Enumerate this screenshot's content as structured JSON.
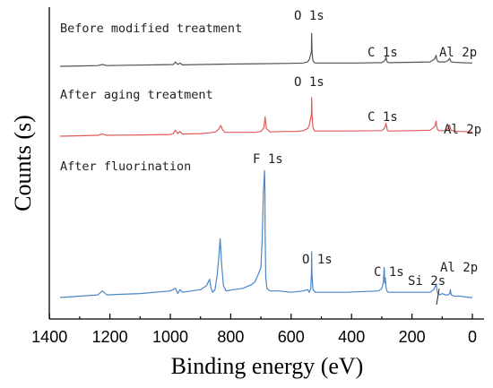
{
  "chart_data": {
    "type": "line",
    "title": "",
    "xlabel": "Binding energy (eV)",
    "ylabel": "Counts (s)",
    "xlim": [
      1400,
      0
    ],
    "x_reversed": true,
    "x_ticks": [
      1400,
      1200,
      1000,
      800,
      600,
      400,
      200,
      0
    ],
    "y_ticks_shown": false,
    "grid": false,
    "legend": "none",
    "series": [
      {
        "name": "Before modified treatment",
        "color": "#555555",
        "x": [
          1365,
          1300,
          1240,
          1225,
          1210,
          1150,
          1050,
          990,
          983,
          975,
          968,
          960,
          900,
          800,
          700,
          600,
          560,
          545,
          540,
          533,
          532,
          531,
          528,
          522,
          510,
          480,
          420,
          380,
          300,
          292,
          288,
          286,
          284,
          282,
          278,
          270,
          200,
          140,
          125,
          120,
          118,
          115,
          110,
          105,
          90,
          80,
          75,
          73,
          70,
          60,
          40,
          10,
          0
        ],
        "y": [
          10,
          11,
          12,
          15,
          12,
          13,
          14,
          15,
          22,
          15,
          19,
          14,
          15,
          16,
          17,
          18,
          19,
          22,
          28,
          50,
          100,
          50,
          25,
          19,
          19,
          19,
          19,
          19,
          20,
          24,
          28,
          36,
          28,
          22,
          20,
          20,
          21,
          22,
          30,
          40,
          30,
          24,
          22,
          22,
          22,
          26,
          32,
          26,
          22,
          21,
          20,
          19,
          19
        ]
      },
      {
        "name": "After aging treatment",
        "color": "#e05a5a",
        "x": [
          1365,
          1300,
          1240,
          1225,
          1210,
          1100,
          1000,
          990,
          983,
          975,
          968,
          960,
          900,
          870,
          850,
          840,
          833,
          828,
          820,
          780,
          720,
          700,
          690,
          686,
          682,
          670,
          620,
          580,
          560,
          545,
          540,
          533,
          532,
          531,
          528,
          522,
          500,
          420,
          300,
          292,
          288,
          286,
          284,
          282,
          278,
          270,
          200,
          140,
          125,
          120,
          118,
          115,
          110,
          105,
          90,
          80,
          75,
          73,
          70,
          60,
          40,
          10,
          0
        ],
        "y": [
          10,
          11,
          12,
          15,
          12,
          13,
          14,
          16,
          24,
          16,
          21,
          15,
          16,
          18,
          20,
          26,
          35,
          26,
          19,
          19,
          19,
          21,
          30,
          55,
          28,
          20,
          21,
          21,
          23,
          28,
          35,
          60,
          100,
          60,
          30,
          22,
          22,
          22,
          23,
          28,
          33,
          40,
          33,
          24,
          22,
          22,
          23,
          24,
          32,
          45,
          33,
          25,
          23,
          23,
          23,
          28,
          36,
          28,
          24,
          22,
          21,
          20,
          20
        ]
      },
      {
        "name": "After fluorination",
        "color": "#4a86c8",
        "x": [
          1365,
          1300,
          1240,
          1225,
          1210,
          1100,
          1000,
          983,
          975,
          968,
          960,
          900,
          880,
          870,
          865,
          860,
          852,
          845,
          840,
          835,
          830,
          824,
          815,
          790,
          760,
          730,
          720,
          710,
          700,
          696,
          692,
          688,
          687,
          686,
          684,
          680,
          670,
          640,
          600,
          560,
          545,
          540,
          535,
          533,
          532,
          531,
          528,
          520,
          480,
          420,
          310,
          300,
          295,
          292,
          290,
          288,
          286,
          283,
          278,
          270,
          200,
          140,
          128,
          120,
          117,
          114,
          108,
          100,
          90,
          80,
          75,
          73,
          70,
          60,
          40,
          10,
          0
        ],
        "y": [
          3,
          4,
          5,
          8,
          5,
          6,
          8,
          10,
          6,
          9,
          7,
          9,
          12,
          17,
          10,
          7,
          9,
          20,
          32,
          48,
          28,
          12,
          8,
          9,
          10,
          13,
          15,
          20,
          26,
          48,
          82,
          100,
          88,
          52,
          18,
          10,
          8,
          8,
          7,
          8,
          9,
          7,
          10,
          20,
          38,
          20,
          9,
          7,
          7,
          7,
          8,
          10,
          14,
          26,
          14,
          18,
          11,
          8,
          7,
          7,
          7,
          7,
          9,
          13,
          8,
          6,
          5,
          6,
          5,
          5,
          6,
          9,
          5,
          4,
          4,
          3,
          3
        ]
      }
    ]
  },
  "annotations": {
    "before_title": "Before modified treatment",
    "aging_title": "After aging treatment",
    "fluor_title": "After fluorination",
    "o1s": "O 1s",
    "c1s": "C 1s",
    "al2p": "Al 2p",
    "f1s": "F 1s",
    "si2s": "Si 2s"
  }
}
